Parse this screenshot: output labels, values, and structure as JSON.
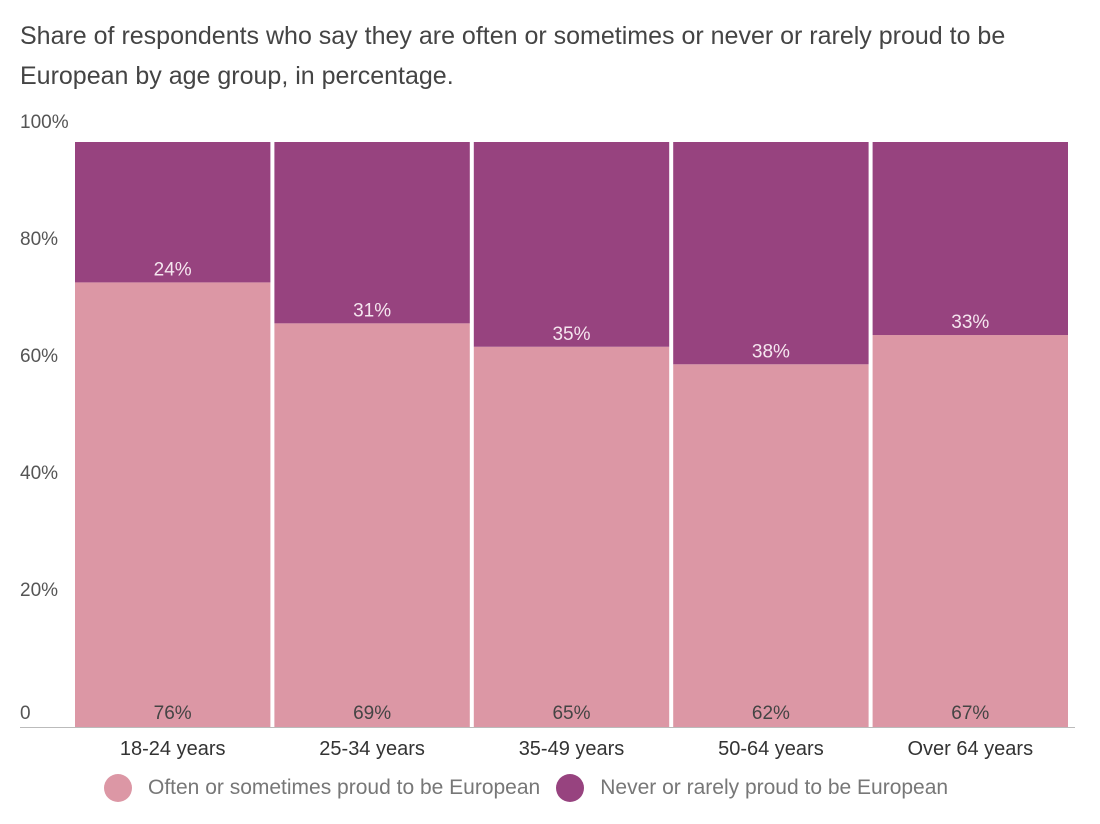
{
  "chart_data": {
    "type": "bar",
    "stacked": true,
    "title": "Share of respondents who say they are often or sometimes or never or rarely proud to be European by age group, in percentage.",
    "categories": [
      "18-24 years",
      "25-34 years",
      "35-49 years",
      "50-64 years",
      "Over 64 years"
    ],
    "series": [
      {
        "name": "Often or sometimes proud to be European",
        "values": [
          76,
          69,
          65,
          62,
          67
        ],
        "labels": [
          "76%",
          "69%",
          "65%",
          "62%",
          "67%"
        ],
        "color": "#dc97a5"
      },
      {
        "name": "Never or rarely proud to be European",
        "values": [
          24,
          31,
          35,
          38,
          33
        ],
        "labels": [
          "24%",
          "31%",
          "35%",
          "38%",
          "33%"
        ],
        "color": "#97437f"
      }
    ],
    "y_ticks": [
      {
        "value": 0,
        "label": "0"
      },
      {
        "value": 20,
        "label": "20%"
      },
      {
        "value": 40,
        "label": "40%"
      },
      {
        "value": 60,
        "label": "60%"
      },
      {
        "value": 80,
        "label": "80%"
      },
      {
        "value": 100,
        "label": "100%"
      }
    ],
    "ylim": [
      0,
      100
    ],
    "grid": false,
    "legend_position": "bottom"
  }
}
